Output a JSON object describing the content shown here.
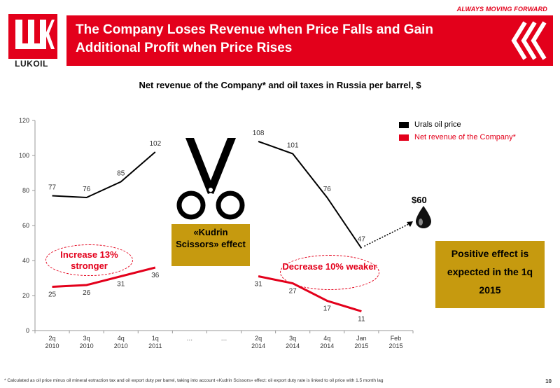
{
  "header": {
    "tagline": "ALWAYS MOVING FORWARD",
    "title": "The Company Loses Revenue when Price Falls and Gain Additional Profit when Price Rises",
    "logo_text": "LUKOIL",
    "brand_color": "#e3001b"
  },
  "chart_data": {
    "type": "line",
    "title": "Net revenue of the Company* and oil taxes in Russia per barrel, $",
    "categories": [
      "2q 2010",
      "3q 2010",
      "4q 2010",
      "1q 2011",
      "…",
      "…",
      "2q 2014",
      "3q 2014",
      "4q 2014",
      "Jan 2015",
      "Feb 2015"
    ],
    "ylim": [
      0,
      120
    ],
    "yticks": [
      0,
      20,
      40,
      60,
      80,
      100,
      120
    ],
    "grid": false,
    "legend_position": "top-right",
    "series": [
      {
        "name": "Urals oil price",
        "color": "#000000",
        "values": [
          77,
          76,
          85,
          102,
          null,
          null,
          108,
          101,
          76,
          47,
          null
        ]
      },
      {
        "name": "Net revenue of the Company*",
        "color": "#e3001b",
        "values": [
          25,
          26,
          31,
          36,
          null,
          null,
          31,
          27,
          17,
          11,
          null
        ]
      }
    ],
    "projection": {
      "from_category": "Jan 2015",
      "to_category": "Feb 2015",
      "label": "$60"
    }
  },
  "annotations": {
    "increase": "Increase 13% stronger",
    "decrease": "Decrease 10% weaker",
    "kudrin": "«Kudrin Scissors» effect",
    "positive": "Positive effect is expected in the 1q 2015",
    "price60": "$60"
  },
  "footer": {
    "footnote": "* Calculated as oil price minus oil mineral extraction tax and oil export duty per barrel, taking into account «Kudrin Scissors» effect: oil export duty rate is linked to oil price with 1.5 month lag",
    "page": "10"
  },
  "colors": {
    "accent": "#e3001b",
    "box": "#c69a0f"
  }
}
